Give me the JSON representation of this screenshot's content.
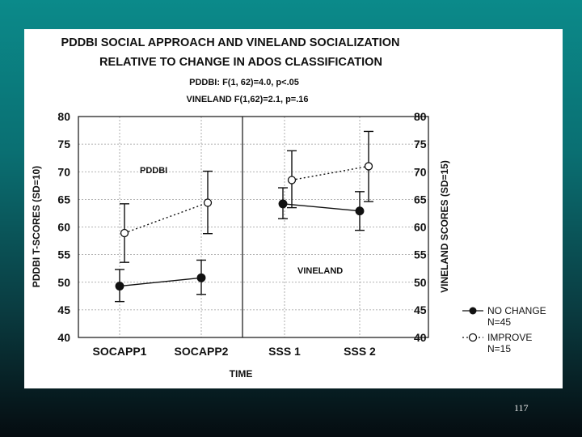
{
  "slide": {
    "page_number": "117"
  },
  "chart_data": {
    "type": "line",
    "title": [
      "PDDBI SOCIAL APPROACH AND VINELAND SOCIALIZATION",
      "RELATIVE TO CHANGE IN ADOS CLASSIFICATION"
    ],
    "subtitle": [
      "PDDBI: F(1, 62)=4.0, p<.05",
      "VINELAND F(1,62)=2.1, p=.16"
    ],
    "xlabel": "TIME",
    "ylabel_left": "PDDBI T-SCORES (SD=10)",
    "ylabel_right": "VINELAND SCORES (SD=15)",
    "ylim": [
      40,
      80
    ],
    "yticks": [
      "40",
      "45",
      "50",
      "55",
      "60",
      "65",
      "70",
      "75",
      "80"
    ],
    "categories": [
      "SOCAPP1",
      "SOCAPP2",
      "SSS 1",
      "SSS 2"
    ],
    "grid": true,
    "legend_position": "right",
    "annotations": {
      "left_panel": "PDDBI",
      "right_panel": "VINELAND"
    },
    "series": [
      {
        "name": "NO CHANGE",
        "n": "N=45",
        "marker": "filled-circle",
        "line": "solid",
        "values": [
          49.3,
          50.8,
          64.2,
          62.9
        ],
        "err_low": [
          46.5,
          47.8,
          61.5,
          59.4
        ],
        "err_high": [
          52.3,
          54.0,
          67.1,
          66.4
        ]
      },
      {
        "name": "IMPROVE",
        "n": "N=15",
        "marker": "open-circle",
        "line": "dotted",
        "values": [
          58.9,
          64.4,
          68.5,
          71.0
        ],
        "err_low": [
          53.6,
          58.8,
          63.5,
          64.6
        ],
        "err_high": [
          64.2,
          70.1,
          73.8,
          77.3
        ]
      }
    ],
    "colors": {
      "line": "#111111",
      "grid": "#9a9a9a",
      "panel": "#ffffff"
    }
  }
}
